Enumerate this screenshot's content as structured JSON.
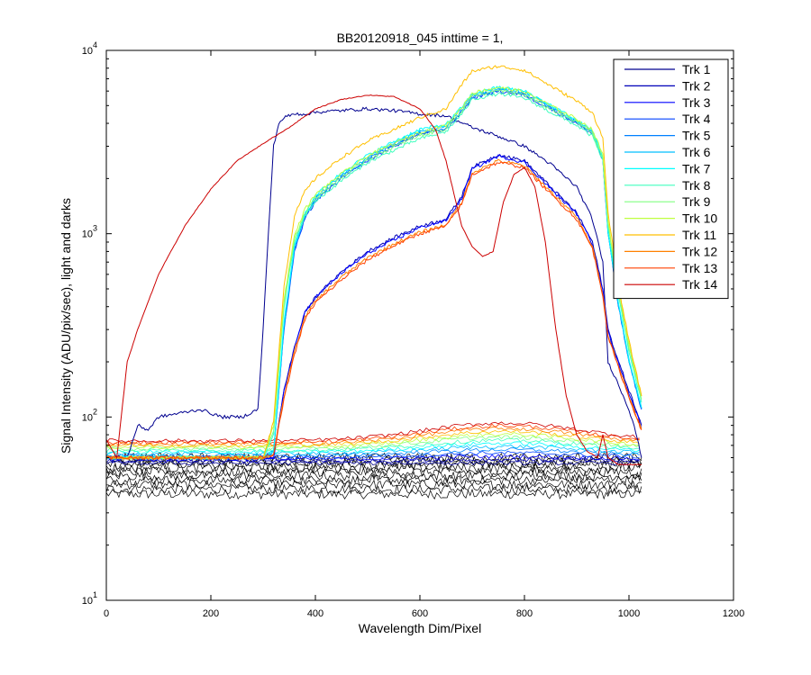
{
  "chart_data": {
    "type": "line",
    "title": "BB20120918_045 inttime = 1,",
    "xlabel": "Wavelength Dim/Pixel",
    "ylabel": "Signal Intensity (ADU/pix/sec), light and darks",
    "xlim": [
      0,
      1200
    ],
    "ylim": [
      10,
      10000
    ],
    "yscale": "log",
    "xticks": [
      0,
      200,
      400,
      600,
      800,
      1000,
      1200
    ],
    "yticks": [
      {
        "base": "10",
        "exp": "1"
      },
      {
        "base": "10",
        "exp": "2"
      },
      {
        "base": "10",
        "exp": "3"
      },
      {
        "base": "10",
        "exp": "4"
      }
    ],
    "grid": false,
    "legend_position": "top-right",
    "darks": {
      "color": "#000000",
      "x": [
        0,
        1024
      ],
      "y_range": [
        38,
        60
      ]
    },
    "series": [
      {
        "name": "Trk 1",
        "color": "#00008f",
        "x": [
          0,
          40,
          60,
          80,
          100,
          140,
          180,
          220,
          260,
          290,
          300,
          310,
          320,
          330,
          340,
          360,
          380,
          400,
          450,
          500,
          550,
          600,
          650,
          700,
          750,
          800,
          850,
          900,
          930,
          950,
          960,
          980,
          1000,
          1010,
          1024
        ],
        "y": [
          60,
          60,
          90,
          85,
          100,
          105,
          110,
          100,
          100,
          110,
          300,
          1000,
          3000,
          4000,
          4300,
          4500,
          4500,
          4600,
          4700,
          4800,
          4700,
          4500,
          4400,
          3800,
          3400,
          3000,
          2400,
          1800,
          1200,
          700,
          200,
          150,
          110,
          90,
          60
        ]
      },
      {
        "name": "Trk 2",
        "color": "#0000b8",
        "x": [
          0,
          300,
          320,
          340,
          360,
          380,
          400,
          450,
          500,
          550,
          600,
          650,
          680,
          700,
          750,
          800,
          850,
          900,
          930,
          950,
          960,
          980,
          1000,
          1024
        ],
        "y": [
          60,
          60,
          60,
          140,
          240,
          370,
          450,
          620,
          800,
          950,
          1100,
          1200,
          1600,
          2300,
          2700,
          2500,
          1800,
          1300,
          900,
          500,
          300,
          200,
          140,
          90
        ]
      },
      {
        "name": "Trk 3",
        "color": "#0000ff",
        "x": [
          0,
          300,
          320,
          340,
          360,
          380,
          400,
          450,
          500,
          550,
          600,
          650,
          680,
          700,
          750,
          800,
          850,
          900,
          930,
          950,
          960,
          980,
          1000,
          1024
        ],
        "y": [
          60,
          60,
          60,
          140,
          240,
          370,
          450,
          610,
          780,
          920,
          1080,
          1180,
          1550,
          2250,
          2650,
          2450,
          1760,
          1280,
          880,
          490,
          290,
          195,
          135,
          88
        ]
      },
      {
        "name": "Trk 4",
        "color": "#0040ff",
        "x": [
          0,
          300,
          320,
          340,
          360,
          380,
          400,
          450,
          500,
          550,
          600,
          650,
          680,
          700,
          750,
          800,
          850,
          900,
          930,
          950,
          960,
          980,
          1000,
          1024
        ],
        "y": [
          60,
          60,
          65,
          300,
          800,
          1200,
          1500,
          2000,
          2500,
          3000,
          3500,
          3700,
          4600,
          5500,
          6000,
          5700,
          4800,
          4000,
          3500,
          2500,
          1000,
          400,
          200,
          110
        ]
      },
      {
        "name": "Trk 5",
        "color": "#0080ff",
        "x": [
          0,
          300,
          320,
          340,
          360,
          380,
          400,
          450,
          500,
          550,
          600,
          650,
          680,
          700,
          750,
          800,
          850,
          900,
          930,
          950,
          960,
          980,
          1000,
          1024
        ],
        "y": [
          60,
          60,
          65,
          310,
          820,
          1230,
          1540,
          2050,
          2560,
          3060,
          3570,
          3780,
          4700,
          5600,
          6100,
          5800,
          4880,
          4050,
          3550,
          2540,
          1010,
          405,
          202,
          111
        ]
      },
      {
        "name": "Trk 6",
        "color": "#00bfff",
        "x": [
          0,
          300,
          320,
          340,
          360,
          380,
          400,
          450,
          500,
          550,
          600,
          650,
          680,
          700,
          750,
          800,
          850,
          900,
          930,
          950,
          960,
          980,
          1000,
          1024
        ],
        "y": [
          60,
          60,
          65,
          320,
          840,
          1260,
          1580,
          2100,
          2620,
          3120,
          3640,
          3860,
          4800,
          5700,
          6200,
          5900,
          4960,
          4100,
          3600,
          2580,
          1020,
          410,
          204,
          112
        ]
      },
      {
        "name": "Trk 7",
        "color": "#00ffff",
        "x": [
          0,
          300,
          320,
          340,
          360,
          380,
          400,
          450,
          500,
          550,
          600,
          650,
          680,
          700,
          750,
          800,
          850,
          900,
          930,
          950,
          960,
          980,
          1000,
          1024
        ],
        "y": [
          60,
          60,
          65,
          330,
          860,
          1290,
          1620,
          2150,
          2680,
          3180,
          3710,
          3940,
          4900,
          5800,
          6300,
          6000,
          5040,
          4150,
          3650,
          2620,
          1030,
          415,
          206,
          113
        ]
      },
      {
        "name": "Trk 8",
        "color": "#40ffbf",
        "x": [
          0,
          300,
          320,
          340,
          360,
          380,
          400,
          450,
          500,
          550,
          600,
          650,
          680,
          700,
          750,
          800,
          850,
          900,
          930,
          950,
          960,
          980,
          1000,
          1024
        ],
        "y": [
          60,
          60,
          80,
          400,
          900,
          1250,
          1500,
          1950,
          2450,
          2850,
          3300,
          3600,
          4500,
          5400,
          5800,
          5500,
          4600,
          3900,
          3400,
          2500,
          1100,
          450,
          230,
          120
        ]
      },
      {
        "name": "Trk 9",
        "color": "#80ff80",
        "x": [
          0,
          300,
          320,
          340,
          360,
          380,
          400,
          450,
          500,
          550,
          600,
          650,
          680,
          700,
          750,
          800,
          850,
          900,
          930,
          950,
          960,
          980,
          1000,
          1024
        ],
        "y": [
          60,
          60,
          85,
          420,
          940,
          1300,
          1560,
          2030,
          2550,
          2970,
          3430,
          3740,
          4680,
          5620,
          6030,
          5720,
          4780,
          4050,
          3540,
          2600,
          1140,
          470,
          240,
          125
        ]
      },
      {
        "name": "Trk 10",
        "color": "#bfff40",
        "x": [
          0,
          300,
          320,
          340,
          360,
          380,
          400,
          450,
          500,
          550,
          600,
          650,
          680,
          700,
          750,
          800,
          850,
          900,
          930,
          950,
          960,
          980,
          1000,
          1024
        ],
        "y": [
          60,
          60,
          90,
          440,
          980,
          1360,
          1630,
          2120,
          2660,
          3100,
          3580,
          3900,
          4880,
          5860,
          6290,
          5960,
          4990,
          4230,
          3690,
          2710,
          1190,
          490,
          250,
          130
        ]
      },
      {
        "name": "Trk 11",
        "color": "#ffbf00",
        "x": [
          0,
          300,
          320,
          340,
          360,
          380,
          400,
          450,
          500,
          550,
          600,
          650,
          680,
          700,
          750,
          800,
          850,
          900,
          930,
          950,
          960,
          980,
          1000,
          1024
        ],
        "y": [
          60,
          60,
          95,
          520,
          1250,
          1700,
          2000,
          2600,
          3200,
          3700,
          4300,
          4800,
          6500,
          7700,
          8200,
          7800,
          6400,
          5300,
          4600,
          3300,
          1300,
          520,
          260,
          130
        ]
      },
      {
        "name": "Trk 12",
        "color": "#ff8000",
        "x": [
          0,
          300,
          320,
          340,
          360,
          380,
          400,
          450,
          500,
          550,
          600,
          650,
          680,
          700,
          750,
          800,
          850,
          900,
          930,
          950,
          960,
          980,
          1000,
          1024
        ],
        "y": [
          60,
          60,
          62,
          130,
          230,
          350,
          430,
          580,
          740,
          880,
          1020,
          1120,
          1480,
          2150,
          2500,
          2350,
          1700,
          1230,
          850,
          470,
          280,
          190,
          130,
          86
        ]
      },
      {
        "name": "Trk 13",
        "color": "#ff4000",
        "x": [
          0,
          300,
          320,
          340,
          360,
          380,
          400,
          450,
          500,
          550,
          600,
          650,
          680,
          700,
          750,
          800,
          850,
          900,
          930,
          950,
          960,
          980,
          1000,
          1024
        ],
        "y": [
          60,
          60,
          62,
          125,
          220,
          340,
          420,
          560,
          720,
          860,
          1000,
          1100,
          1450,
          2100,
          2450,
          2300,
          1650,
          1200,
          830,
          460,
          275,
          185,
          128,
          85
        ]
      },
      {
        "name": "Trk 14",
        "color": "#cc0000",
        "x": [
          0,
          20,
          40,
          60,
          100,
          150,
          200,
          250,
          300,
          350,
          400,
          450,
          500,
          550,
          600,
          630,
          650,
          680,
          700,
          720,
          740,
          760,
          780,
          800,
          820,
          840,
          860,
          880,
          900,
          920,
          940,
          950,
          960,
          980,
          1000,
          1024
        ],
        "y": [
          75,
          60,
          200,
          300,
          600,
          1100,
          1750,
          2500,
          3100,
          3800,
          4800,
          5400,
          5700,
          5600,
          4800,
          3700,
          2500,
          1100,
          850,
          750,
          800,
          1500,
          2100,
          2300,
          1800,
          900,
          300,
          130,
          80,
          65,
          60,
          80,
          60,
          55,
          55,
          55
        ]
      }
    ]
  }
}
